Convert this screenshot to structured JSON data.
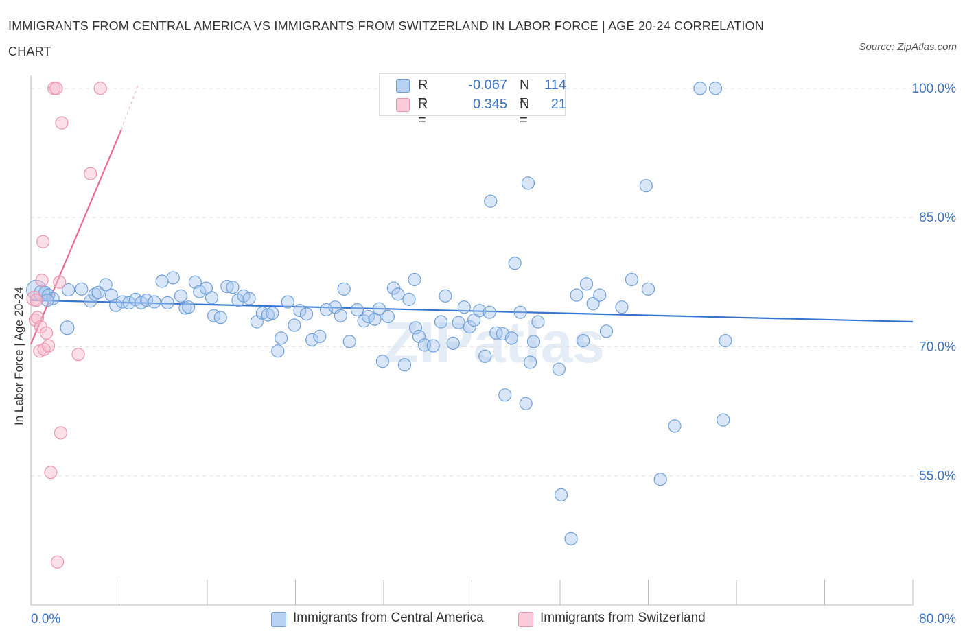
{
  "header": {
    "title": "IMMIGRANTS FROM CENTRAL AMERICA VS IMMIGRANTS FROM SWITZERLAND IN LABOR FORCE | AGE 20-24 CORRELATION CHART",
    "source": "Source: ZipAtlas.com"
  },
  "colors": {
    "blue_fill": "#a9c8f0",
    "blue_stroke": "#6f9fd8",
    "blue_line": "#3575d0",
    "pink_fill": "#f7b8ca",
    "pink_stroke": "#e994b0",
    "pink_line": "#e8699a",
    "tick_label": "#3b73c4",
    "grid": "#dddddd"
  },
  "legend_top": {
    "rows": [
      {
        "r_label": "R =",
        "r_value": "-0.067",
        "n_label": "N =",
        "n_value": "114"
      },
      {
        "r_label": "R =",
        "r_value": "0.345",
        "n_label": "N =",
        "n_value": "21"
      }
    ]
  },
  "legend_bottom": {
    "items": [
      {
        "label": "Immigrants from Central America"
      },
      {
        "label": "Immigrants from Switzerland"
      }
    ]
  },
  "chart_data": {
    "type": "scatter",
    "title": "IMMIGRANTS FROM CENTRAL AMERICA VS IMMIGRANTS FROM SWITZERLAND IN LABOR FORCE | AGE 20-24 CORRELATION CHART",
    "xlabel": "",
    "ylabel": "In Labor Force | Age 20-24",
    "xlim": [
      0,
      80
    ],
    "ylim": [
      40,
      101.5
    ],
    "x_tick_labels": [
      "0.0%",
      "80.0%"
    ],
    "y_ticks": [
      55,
      70,
      85,
      100
    ],
    "y_tick_labels": [
      "55.0%",
      "70.0%",
      "85.0%",
      "100.0%"
    ],
    "grid": true,
    "watermark": "ZIPatlas",
    "series": [
      {
        "name": "Immigrants from Central America",
        "R": -0.067,
        "N": 114,
        "trend": {
          "x": [
            0,
            80
          ],
          "y": [
            75.4,
            72.9
          ]
        },
        "points": [
          [
            0.5,
            76.6,
            1.6
          ],
          [
            1.0,
            76.2,
            1.3
          ],
          [
            1.3,
            76.3,
            1.0
          ],
          [
            1.6,
            76.0,
            1.0
          ],
          [
            2.0,
            75.6,
            1.0
          ],
          [
            1.5,
            75.4,
            1.0
          ],
          [
            3.4,
            76.6,
            1.0
          ],
          [
            4.6,
            76.7,
            1.0
          ],
          [
            3.3,
            72.2,
            1.1
          ],
          [
            5.4,
            75.3,
            1.0
          ],
          [
            5.8,
            76.1,
            1.0
          ],
          [
            6.1,
            76.3,
            1.0
          ],
          [
            6.8,
            77.2,
            1.0
          ],
          [
            7.3,
            76.0,
            1.0
          ],
          [
            7.7,
            74.8,
            1.0
          ],
          [
            8.3,
            75.2,
            1.0
          ],
          [
            8.9,
            75.1,
            1.0
          ],
          [
            9.5,
            75.5,
            1.0
          ],
          [
            10.0,
            75.1,
            1.0
          ],
          [
            10.5,
            75.4,
            1.0
          ],
          [
            11.2,
            75.2,
            1.0
          ],
          [
            11.9,
            77.6,
            1.0
          ],
          [
            12.4,
            75.1,
            1.0
          ],
          [
            12.9,
            78.0,
            1.0
          ],
          [
            13.6,
            75.9,
            1.0
          ],
          [
            14.0,
            74.5,
            1.0
          ],
          [
            14.3,
            74.6,
            1.0
          ],
          [
            14.9,
            77.5,
            1.0
          ],
          [
            15.3,
            76.4,
            1.0
          ],
          [
            15.9,
            76.8,
            1.0
          ],
          [
            16.4,
            75.7,
            1.0
          ],
          [
            16.6,
            73.6,
            1.0
          ],
          [
            17.2,
            73.4,
            1.0
          ],
          [
            17.8,
            77.0,
            1.0
          ],
          [
            18.3,
            76.9,
            1.0
          ],
          [
            18.8,
            75.4,
            1.0
          ],
          [
            19.3,
            75.9,
            1.0
          ],
          [
            19.8,
            75.6,
            1.0
          ],
          [
            20.5,
            72.9,
            1.0
          ],
          [
            21.0,
            73.9,
            1.0
          ],
          [
            21.5,
            73.7,
            1.0
          ],
          [
            21.9,
            73.9,
            1.0
          ],
          [
            22.4,
            69.5,
            1.0
          ],
          [
            22.7,
            71.0,
            1.0
          ],
          [
            23.3,
            75.2,
            1.0
          ],
          [
            23.9,
            72.5,
            1.0
          ],
          [
            24.4,
            74.2,
            1.0
          ],
          [
            25.0,
            73.8,
            1.0
          ],
          [
            25.5,
            70.8,
            1.0
          ],
          [
            26.2,
            71.2,
            1.0
          ],
          [
            26.8,
            74.3,
            1.0
          ],
          [
            27.6,
            74.6,
            1.0
          ],
          [
            28.1,
            73.6,
            1.0
          ],
          [
            28.4,
            76.7,
            1.0
          ],
          [
            28.9,
            70.6,
            1.0
          ],
          [
            29.6,
            74.3,
            1.0
          ],
          [
            30.2,
            73.0,
            1.0
          ],
          [
            30.6,
            73.5,
            1.0
          ],
          [
            31.2,
            73.2,
            1.0
          ],
          [
            31.6,
            74.4,
            1.0
          ],
          [
            31.9,
            68.3,
            1.0
          ],
          [
            32.4,
            73.5,
            1.0
          ],
          [
            32.9,
            76.8,
            1.0
          ],
          [
            33.3,
            76.1,
            1.0
          ],
          [
            33.9,
            67.9,
            1.0
          ],
          [
            34.3,
            75.5,
            1.0
          ],
          [
            34.8,
            77.8,
            1.0
          ],
          [
            34.9,
            72.2,
            1.0
          ],
          [
            35.2,
            71.2,
            1.0
          ],
          [
            35.7,
            70.2,
            1.0
          ],
          [
            36.5,
            70.1,
            1.0
          ],
          [
            37.2,
            72.9,
            1.0
          ],
          [
            37.6,
            75.9,
            1.0
          ],
          [
            38.3,
            70.4,
            1.0
          ],
          [
            38.8,
            72.8,
            1.0
          ],
          [
            39.3,
            74.6,
            1.0
          ],
          [
            39.8,
            72.3,
            1.0
          ],
          [
            40.2,
            73.1,
            1.0
          ],
          [
            40.7,
            74.2,
            1.0
          ],
          [
            41.2,
            68.9,
            1.0
          ],
          [
            41.6,
            74.0,
            1.0
          ],
          [
            41.7,
            86.9,
            1.0
          ],
          [
            42.2,
            71.6,
            1.0
          ],
          [
            42.8,
            71.5,
            1.0
          ],
          [
            43.0,
            64.4,
            1.0
          ],
          [
            43.6,
            71.0,
            1.0
          ],
          [
            43.9,
            79.7,
            1.0
          ],
          [
            44.4,
            74.0,
            1.0
          ],
          [
            44.9,
            63.4,
            1.0
          ],
          [
            45.1,
            89.0,
            1.0
          ],
          [
            45.3,
            68.2,
            1.0
          ],
          [
            45.6,
            70.6,
            1.0
          ],
          [
            46.0,
            72.9,
            1.0
          ],
          [
            46.6,
            100.0,
            1.0
          ],
          [
            47.1,
            100.0,
            1.0
          ],
          [
            47.9,
            67.4,
            1.0
          ],
          [
            48.1,
            52.8,
            1.0
          ],
          [
            49.0,
            47.7,
            1.0
          ],
          [
            50.1,
            70.7,
            1.0
          ],
          [
            50.4,
            77.3,
            1.0
          ],
          [
            51.0,
            75.0,
            1.0
          ],
          [
            51.6,
            76.0,
            1.0
          ],
          [
            52.2,
            71.8,
            1.0
          ],
          [
            53.6,
            74.6,
            1.0
          ],
          [
            54.5,
            77.8,
            1.0
          ],
          [
            55.8,
            88.7,
            1.0
          ],
          [
            56.0,
            76.7,
            1.0
          ],
          [
            57.1,
            54.6,
            1.0
          ],
          [
            58.4,
            60.8,
            1.0
          ],
          [
            60.7,
            100.0,
            1.0
          ],
          [
            62.1,
            100.0,
            1.0
          ],
          [
            62.8,
            61.5,
            1.0
          ],
          [
            63.0,
            70.7,
            1.0
          ],
          [
            49.5,
            76.0,
            1.0
          ]
        ]
      },
      {
        "name": "Immigrants from Switzerland",
        "R": 0.345,
        "N": 21,
        "trend": {
          "x": [
            0,
            8.2
          ],
          "y": [
            70.3,
            95.2
          ]
        },
        "trend_dashed": {
          "x": [
            8.2,
            9.7
          ],
          "y": [
            95.2,
            100.3
          ]
        },
        "points": [
          [
            0.3,
            75.6,
            1.2
          ],
          [
            0.4,
            73.1,
            1.0
          ],
          [
            0.5,
            75.4,
            1.0
          ],
          [
            0.6,
            73.4,
            1.0
          ],
          [
            0.8,
            69.5,
            1.0
          ],
          [
            0.9,
            72.3,
            1.0
          ],
          [
            1.0,
            77.7,
            1.0
          ],
          [
            1.1,
            82.2,
            1.0
          ],
          [
            1.2,
            69.7,
            1.0
          ],
          [
            1.4,
            71.6,
            1.0
          ],
          [
            1.6,
            70.1,
            1.0
          ],
          [
            1.8,
            55.4,
            1.0
          ],
          [
            2.1,
            100.0,
            1.0
          ],
          [
            2.3,
            100.0,
            1.0
          ],
          [
            2.4,
            45.0,
            1.0
          ],
          [
            2.6,
            77.5,
            1.0
          ],
          [
            2.7,
            60.0,
            1.0
          ],
          [
            2.8,
            96.0,
            1.0
          ],
          [
            4.3,
            69.1,
            1.0
          ],
          [
            5.4,
            90.1,
            1.0
          ],
          [
            6.3,
            100.0,
            1.0
          ]
        ]
      }
    ]
  }
}
